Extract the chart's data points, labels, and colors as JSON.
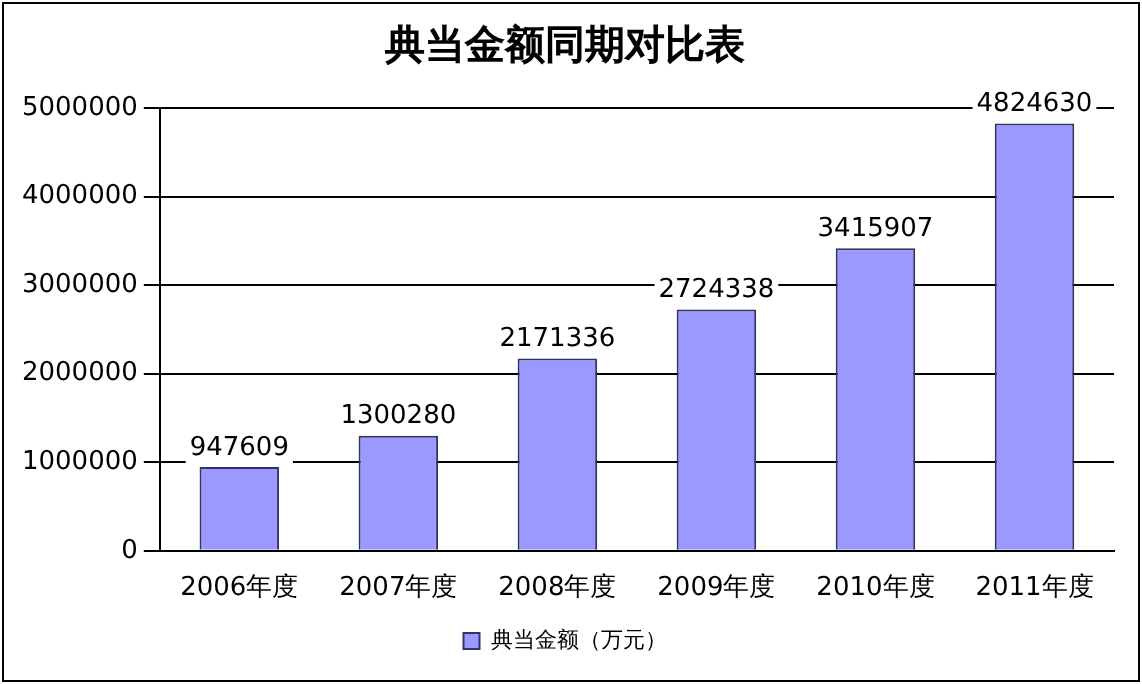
{
  "chart_data": {
    "type": "bar",
    "title": "典当金额同期对比表",
    "categories": [
      "2006年度",
      "2007年度",
      "2008年度",
      "2009年度",
      "2010年度",
      "2011年度"
    ],
    "series": [
      {
        "name": "典当金额（万元）",
        "color": "#9999ff",
        "values": [
          947609,
          1300280,
          2171336,
          2724338,
          3415907,
          4824630
        ]
      }
    ],
    "ylim": [
      0,
      5000000
    ],
    "yticks": [
      0,
      1000000,
      2000000,
      3000000,
      4000000,
      5000000
    ],
    "grid": "y",
    "legend": "bottom",
    "data_labels": true
  }
}
